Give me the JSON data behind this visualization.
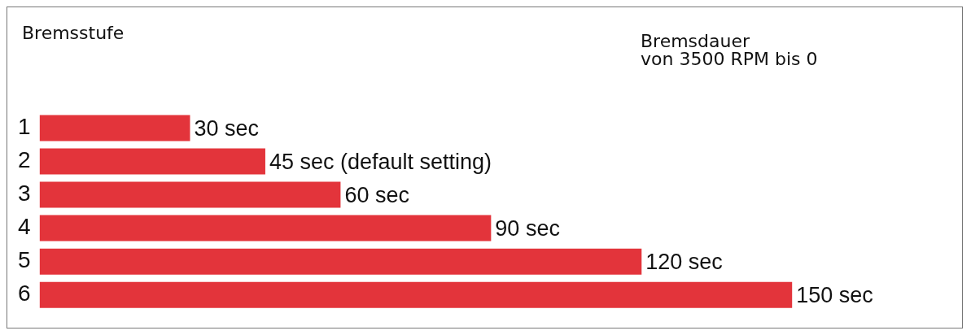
{
  "chart_data": {
    "type": "bar",
    "orientation": "horizontal",
    "ylabel": "Bremsstufe",
    "xlabel": "Bremsdauer\nvon 3500 RPM bis 0",
    "categories": [
      "1",
      "2",
      "3",
      "4",
      "5",
      "6"
    ],
    "values": [
      30,
      45,
      60,
      90,
      120,
      150
    ],
    "value_labels": [
      "30 sec",
      "45 sec (default setting)",
      "60 sec",
      "90 sec",
      "120 sec",
      "150 sec"
    ],
    "color": "#e3343b",
    "legend": false
  }
}
